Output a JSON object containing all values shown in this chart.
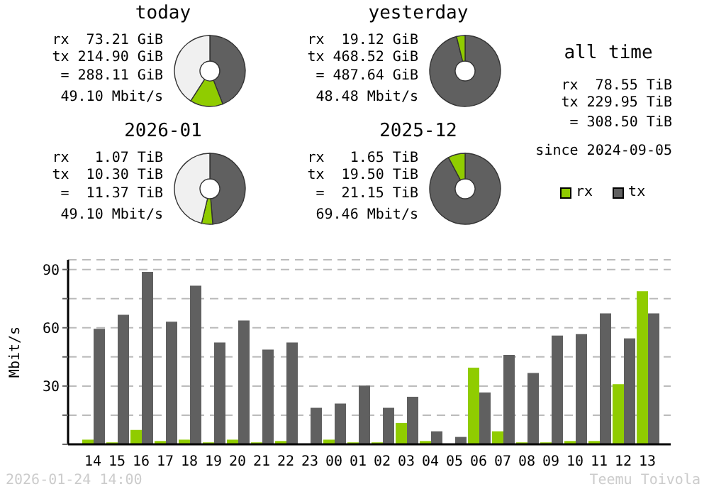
{
  "chart_data": [
    {
      "type": "donut",
      "title": "today",
      "categories": [
        null,
        null,
        null
      ],
      "values": [
        44.07,
        15.01,
        40.92
      ],
      "colors": [
        "#606060",
        "#90cc00",
        "#f0f0f0"
      ],
      "annotations": [
        "rx  73.21 GiB",
        "tx 214.90 GiB",
        "= 288.11 GiB",
        "49.10 Mbit/s"
      ]
    },
    {
      "type": "donut",
      "title": "yesterday",
      "categories": [
        null,
        null
      ],
      "values": [
        96.08,
        3.92
      ],
      "colors": [
        "#606060",
        "#90cc00"
      ],
      "annotations": [
        "rx  19.12 GiB",
        "tx 468.52 GiB",
        "= 487.64 GiB",
        "48.48 Mbit/s"
      ]
    },
    {
      "type": "other",
      "title": "all time",
      "annotations": [
        "rx  78.55 TiB",
        "tx 229.95 TiB",
        "= 308.50 TiB",
        "since 2024-09-05"
      ]
    },
    {
      "type": "donut",
      "title": "2026-01",
      "categories": [
        null,
        null,
        null
      ],
      "values": [
        48.7,
        5.06,
        46.24
      ],
      "colors": [
        "#606060",
        "#90cc00",
        "#f0f0f0"
      ],
      "annotations": [
        "rx   1.07 TiB",
        "tx  10.30 TiB",
        "=  11.37 TiB",
        "49.10 Mbit/s"
      ]
    },
    {
      "type": "donut",
      "title": "2025-12",
      "categories": [
        null,
        null
      ],
      "values": [
        92.2,
        7.8
      ],
      "colors": [
        "#606060",
        "#90cc00"
      ],
      "annotations": [
        "rx   1.65 TiB",
        "tx  19.50 TiB",
        "=  21.15 TiB",
        "69.46 Mbit/s"
      ]
    },
    {
      "type": "bar",
      "ylabel": "Mbit/s",
      "categories": [
        "14",
        "15",
        "16",
        "17",
        "18",
        "19",
        "20",
        "21",
        "22",
        "23",
        "00",
        "01",
        "02",
        "03",
        "04",
        "05",
        "06",
        "07",
        "08",
        "09",
        "10",
        "11",
        "12",
        "13"
      ],
      "series": [
        {
          "name": "rx",
          "color": "#90cc00",
          "values": [
            2.4,
            1,
            7.4,
            1.7,
            2.4,
            1,
            2.4,
            1,
            1.7,
            0,
            2.4,
            1,
            1,
            11,
            1.7,
            0,
            39.5,
            6.7,
            1,
            1,
            1.7,
            1.7,
            31,
            78.8
          ]
        },
        {
          "name": "tx",
          "color": "#606060",
          "values": [
            59.5,
            66.7,
            88.8,
            63.1,
            81.7,
            52.4,
            63.8,
            48.8,
            52.4,
            18.8,
            21,
            30.2,
            18.8,
            24.5,
            6.7,
            3.8,
            26.7,
            46,
            36.7,
            56,
            56.7,
            67.4,
            54.5,
            67.4
          ]
        }
      ],
      "ylim": [
        0,
        95
      ],
      "yticks": [
        {
          "value": 0,
          "label": null
        },
        {
          "value": 15,
          "label": null
        },
        30,
        {
          "value": 45,
          "label": null
        },
        60,
        {
          "value": 75,
          "label": null
        },
        90
      ],
      "grid": "y",
      "legend": "top right",
      "annotations": [
        "2026-01-24 14:00",
        "Teemu Toivola"
      ]
    }
  ]
}
